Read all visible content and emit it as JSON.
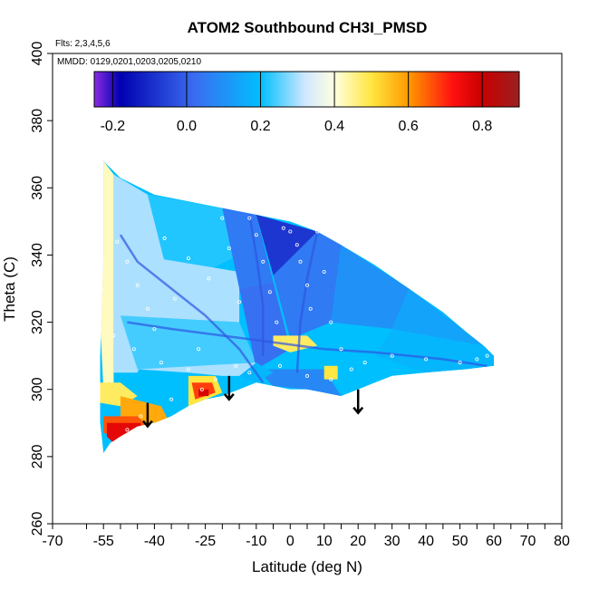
{
  "chart_data": {
    "type": "heatmap",
    "title": "ATOM2 Southbound CH3I_PMSD",
    "subtitle_flights": "Flts: 2,3,4,5,6",
    "subtitle_dates": "MMDD: 0129,0201,0203,0205,0210",
    "xlabel": "Latitude (deg N)",
    "ylabel": "Theta (C)",
    "xlim": [
      -70,
      80
    ],
    "ylim": [
      260,
      400
    ],
    "x_ticks": [
      -70,
      -60,
      -55,
      -50,
      -45,
      -40,
      -35,
      -30,
      -25,
      -20,
      -15,
      -10,
      -5,
      0,
      5,
      10,
      15,
      20,
      25,
      30,
      35,
      40,
      45,
      50,
      55,
      60,
      65,
      70,
      75,
      80
    ],
    "x_tick_labels": [
      "-70",
      "",
      "-55",
      "",
      "",
      "-40",
      "",
      "",
      "-25",
      "",
      "",
      "-10",
      "",
      "0",
      "",
      "10",
      "",
      "20",
      "",
      "30",
      "",
      "40",
      "",
      "50",
      "",
      "60",
      "",
      "70",
      "",
      "80"
    ],
    "y_ticks": [
      260,
      280,
      300,
      320,
      340,
      360,
      380,
      400
    ],
    "y_tick_labels": [
      "260",
      "280",
      "300",
      "320",
      "340",
      "360",
      "380",
      "400"
    ],
    "colorbar": {
      "range": [
        -0.25,
        0.9
      ],
      "ticks": [
        -0.2,
        0.0,
        0.2,
        0.4,
        0.6,
        0.8
      ],
      "tick_labels": [
        "-0.2",
        "0.0",
        "0.2",
        "0.4",
        "0.6",
        "0.8"
      ],
      "stops": [
        {
          "v": -0.25,
          "c": "#8a2be2"
        },
        {
          "v": -0.18,
          "c": "#0000b0"
        },
        {
          "v": 0.02,
          "c": "#3a6cf0"
        },
        {
          "v": 0.2,
          "c": "#00bfff"
        },
        {
          "v": 0.32,
          "c": "#cfe7ff"
        },
        {
          "v": 0.4,
          "c": "#ffffe0"
        },
        {
          "v": 0.5,
          "c": "#ffe640"
        },
        {
          "v": 0.6,
          "c": "#ff9a00"
        },
        {
          "v": 0.72,
          "c": "#ff1010"
        },
        {
          "v": 0.8,
          "c": "#c80000"
        },
        {
          "v": 0.9,
          "c": "#9b2020"
        }
      ]
    },
    "domain_outline": [
      [
        -55,
        368
      ],
      [
        -50,
        363
      ],
      [
        -40,
        358
      ],
      [
        -30,
        356
      ],
      [
        -20,
        354
      ],
      [
        -10,
        352
      ],
      [
        0,
        350
      ],
      [
        8,
        347
      ],
      [
        15,
        343
      ],
      [
        25,
        337
      ],
      [
        35,
        330
      ],
      [
        45,
        323
      ],
      [
        52,
        317
      ],
      [
        57,
        313
      ],
      [
        60,
        310
      ],
      [
        60,
        307
      ],
      [
        52,
        306
      ],
      [
        40,
        305
      ],
      [
        30,
        304
      ],
      [
        25,
        302
      ],
      [
        20,
        300
      ],
      [
        15,
        298
      ],
      [
        10,
        299
      ],
      [
        5,
        300
      ],
      [
        0,
        300
      ],
      [
        -5,
        301
      ],
      [
        -10,
        302
      ],
      [
        -15,
        300
      ],
      [
        -20,
        298
      ],
      [
        -25,
        297
      ],
      [
        -30,
        295
      ],
      [
        -35,
        292
      ],
      [
        -40,
        290
      ],
      [
        -45,
        289
      ],
      [
        -50,
        286
      ],
      [
        -53,
        284
      ],
      [
        -55,
        281
      ],
      [
        -56,
        290
      ],
      [
        -56,
        310
      ],
      [
        -55,
        340
      ]
    ],
    "regions": [
      {
        "v": 0.42,
        "pts": [
          [
            -55,
            368
          ],
          [
            -52,
            364
          ],
          [
            -52,
            300
          ],
          [
            -55,
            300
          ],
          [
            -56,
            320
          ]
        ]
      },
      {
        "v": 0.3,
        "pts": [
          [
            -52,
            364
          ],
          [
            -42,
            358
          ],
          [
            -35,
            330
          ],
          [
            -45,
            305
          ],
          [
            -52,
            305
          ]
        ]
      },
      {
        "v": 0.22,
        "pts": [
          [
            -42,
            358
          ],
          [
            -20,
            354
          ],
          [
            -15,
            340
          ],
          [
            -35,
            330
          ]
        ]
      },
      {
        "v": 0.3,
        "pts": [
          [
            -45,
            340
          ],
          [
            -15,
            335
          ],
          [
            -15,
            320
          ],
          [
            -50,
            322
          ]
        ]
      },
      {
        "v": 0.24,
        "pts": [
          [
            -50,
            322
          ],
          [
            -15,
            320
          ],
          [
            -10,
            308
          ],
          [
            -45,
            306
          ]
        ]
      },
      {
        "v": 0.05,
        "pts": [
          [
            -20,
            354
          ],
          [
            -10,
            352
          ],
          [
            -5,
            332
          ],
          [
            -15,
            330
          ]
        ]
      },
      {
        "v": -0.08,
        "pts": [
          [
            -10,
            352
          ],
          [
            8,
            347
          ],
          [
            3,
            336
          ],
          [
            -5,
            334
          ]
        ]
      },
      {
        "v": 0.03,
        "pts": [
          [
            -15,
            330
          ],
          [
            -5,
            332
          ],
          [
            0,
            312
          ],
          [
            -10,
            306
          ]
        ]
      },
      {
        "v": 0.05,
        "pts": [
          [
            -5,
            334
          ],
          [
            8,
            347
          ],
          [
            15,
            343
          ],
          [
            12,
            320
          ],
          [
            0,
            315
          ]
        ]
      },
      {
        "v": 0.1,
        "pts": [
          [
            15,
            343
          ],
          [
            35,
            330
          ],
          [
            30,
            318
          ],
          [
            12,
            320
          ]
        ]
      },
      {
        "v": 0.14,
        "pts": [
          [
            35,
            330
          ],
          [
            52,
            317
          ],
          [
            57,
            313
          ],
          [
            45,
            312
          ],
          [
            30,
            318
          ]
        ]
      },
      {
        "v": 0.18,
        "pts": [
          [
            30,
            318
          ],
          [
            57,
            313
          ],
          [
            60,
            310
          ],
          [
            60,
            307
          ],
          [
            40,
            305
          ],
          [
            25,
            310
          ]
        ]
      },
      {
        "v": 0.2,
        "pts": [
          [
            0,
            315
          ],
          [
            25,
            310
          ],
          [
            25,
            302
          ],
          [
            10,
            306
          ],
          [
            0,
            306
          ]
        ]
      },
      {
        "v": 0.08,
        "pts": [
          [
            -10,
            306
          ],
          [
            0,
            306
          ],
          [
            10,
            306
          ],
          [
            15,
            298
          ],
          [
            5,
            300
          ],
          [
            -5,
            301
          ]
        ]
      },
      {
        "v": 0.18,
        "pts": [
          [
            -10,
            308
          ],
          [
            -5,
            305
          ],
          [
            -10,
            302
          ],
          [
            -15,
            304
          ]
        ]
      },
      {
        "v": 0.48,
        "pts": [
          [
            -5,
            316
          ],
          [
            5,
            316
          ],
          [
            8,
            313
          ],
          [
            0,
            311
          ],
          [
            -5,
            313
          ]
        ]
      },
      {
        "v": 0.5,
        "pts": [
          [
            10,
            307
          ],
          [
            14,
            307
          ],
          [
            14,
            303
          ],
          [
            10,
            303
          ]
        ]
      },
      {
        "v": 0.3,
        "pts": [
          [
            -45,
            306
          ],
          [
            -10,
            308
          ],
          [
            -15,
            304
          ],
          [
            -20,
            304
          ],
          [
            -30,
            305
          ]
        ]
      },
      {
        "v": 0.48,
        "pts": [
          [
            -56,
            302
          ],
          [
            -50,
            302
          ],
          [
            -45,
            298
          ],
          [
            -50,
            295
          ],
          [
            -56,
            296
          ]
        ]
      },
      {
        "v": 0.58,
        "pts": [
          [
            -50,
            298
          ],
          [
            -38,
            295
          ],
          [
            -36,
            291
          ],
          [
            -45,
            289
          ],
          [
            -50,
            292
          ]
        ]
      },
      {
        "v": 0.66,
        "pts": [
          [
            -55,
            292
          ],
          [
            -45,
            292
          ],
          [
            -42,
            289
          ],
          [
            -50,
            286
          ],
          [
            -55,
            287
          ]
        ]
      },
      {
        "v": 0.76,
        "pts": [
          [
            -54,
            290
          ],
          [
            -44,
            290
          ],
          [
            -44,
            288
          ],
          [
            -52,
            284
          ],
          [
            -54,
            286
          ]
        ]
      },
      {
        "v": 0.5,
        "pts": [
          [
            -30,
            304
          ],
          [
            -22,
            304
          ],
          [
            -20,
            299
          ],
          [
            -30,
            295
          ]
        ]
      },
      {
        "v": 0.68,
        "pts": [
          [
            -29,
            302
          ],
          [
            -23,
            302
          ],
          [
            -22,
            299
          ],
          [
            -28,
            297
          ]
        ]
      },
      {
        "v": 0.78,
        "pts": [
          [
            -27,
            300
          ],
          [
            -24,
            300
          ],
          [
            -24,
            298
          ],
          [
            -27,
            298
          ]
        ]
      }
    ],
    "flight_tracks": [
      {
        "name": "track-1",
        "points": [
          [
            -50,
            346
          ],
          [
            -45,
            338
          ],
          [
            -35,
            330
          ],
          [
            -25,
            322
          ],
          [
            -15,
            312
          ],
          [
            -8,
            302
          ]
        ]
      },
      {
        "name": "track-2",
        "points": [
          [
            -12,
            352
          ],
          [
            -10,
            340
          ],
          [
            -8,
            325
          ],
          [
            -8,
            310
          ]
        ]
      },
      {
        "name": "track-3",
        "points": [
          [
            8,
            347
          ],
          [
            5,
            333
          ],
          [
            3,
            320
          ],
          [
            2,
            305
          ]
        ]
      },
      {
        "name": "track-4",
        "points": [
          [
            -48,
            320
          ],
          [
            -35,
            318
          ],
          [
            -20,
            316
          ],
          [
            -5,
            314
          ],
          [
            10,
            312
          ],
          [
            25,
            311
          ],
          [
            45,
            309
          ],
          [
            58,
            307
          ]
        ]
      }
    ],
    "sample_points": [
      [
        -51,
        344
      ],
      [
        -48,
        338
      ],
      [
        -45,
        331
      ],
      [
        -42,
        324
      ],
      [
        -40,
        318
      ],
      [
        -37,
        345
      ],
      [
        -34,
        327
      ],
      [
        -30,
        339
      ],
      [
        -27,
        312
      ],
      [
        -24,
        333
      ],
      [
        -20,
        351
      ],
      [
        -18,
        342
      ],
      [
        -15,
        326
      ],
      [
        -12,
        351
      ],
      [
        -10,
        346
      ],
      [
        -8,
        338
      ],
      [
        -6,
        329
      ],
      [
        -4,
        320
      ],
      [
        -2,
        348
      ],
      [
        0,
        347
      ],
      [
        2,
        343
      ],
      [
        3,
        338
      ],
      [
        5,
        331
      ],
      [
        6,
        324
      ],
      [
        8,
        347
      ],
      [
        10,
        335
      ],
      [
        12,
        320
      ],
      [
        15,
        312
      ],
      [
        18,
        306
      ],
      [
        22,
        308
      ],
      [
        30,
        310
      ],
      [
        40,
        309
      ],
      [
        50,
        308
      ],
      [
        58,
        310
      ],
      [
        -52,
        316
      ],
      [
        -46,
        312
      ],
      [
        -38,
        308
      ],
      [
        -30,
        306
      ],
      [
        -22,
        303
      ],
      [
        -16,
        307
      ],
      [
        -12,
        305
      ],
      [
        -3,
        307
      ],
      [
        5,
        304
      ],
      [
        12,
        303
      ],
      [
        -44,
        292
      ],
      [
        -35,
        297
      ],
      [
        -26,
        300
      ],
      [
        -48,
        288
      ],
      [
        58,
        313
      ],
      [
        55,
        309
      ]
    ],
    "arrows": [
      [
        -42,
        296,
        289
      ],
      [
        -18,
        304,
        297
      ],
      [
        20,
        300,
        293
      ]
    ]
  }
}
